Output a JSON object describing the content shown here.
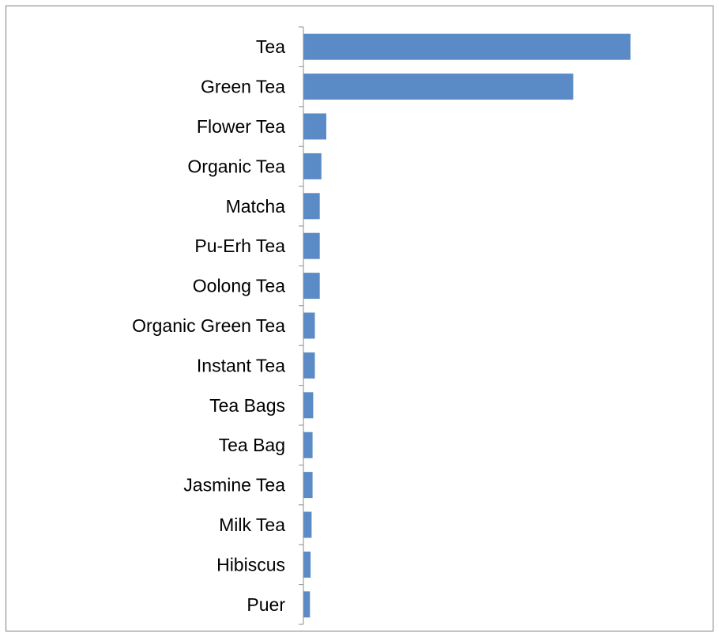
{
  "chart_data": {
    "type": "bar",
    "orientation": "horizontal",
    "categories": [
      "Tea",
      "Green Tea",
      "Flower Tea",
      "Organic Tea",
      "Matcha",
      "Pu-Erh Tea",
      "Oolong Tea",
      "Organic Green Tea",
      "Instant Tea",
      "Tea Bags",
      "Tea Bag",
      "Jasmine Tea",
      "Milk Tea",
      "Hibiscus",
      "Puer"
    ],
    "values": [
      100,
      82.5,
      7,
      5.5,
      5,
      5,
      5,
      3.5,
      3.5,
      3,
      2.8,
      2.8,
      2.5,
      2.2,
      2
    ],
    "xlim": [
      0,
      100
    ],
    "title": "",
    "xlabel": "",
    "ylabel": "",
    "grid": false,
    "legend": "none",
    "bar_color": "#5b8bc6",
    "axis_color": "#8c8c8c"
  }
}
